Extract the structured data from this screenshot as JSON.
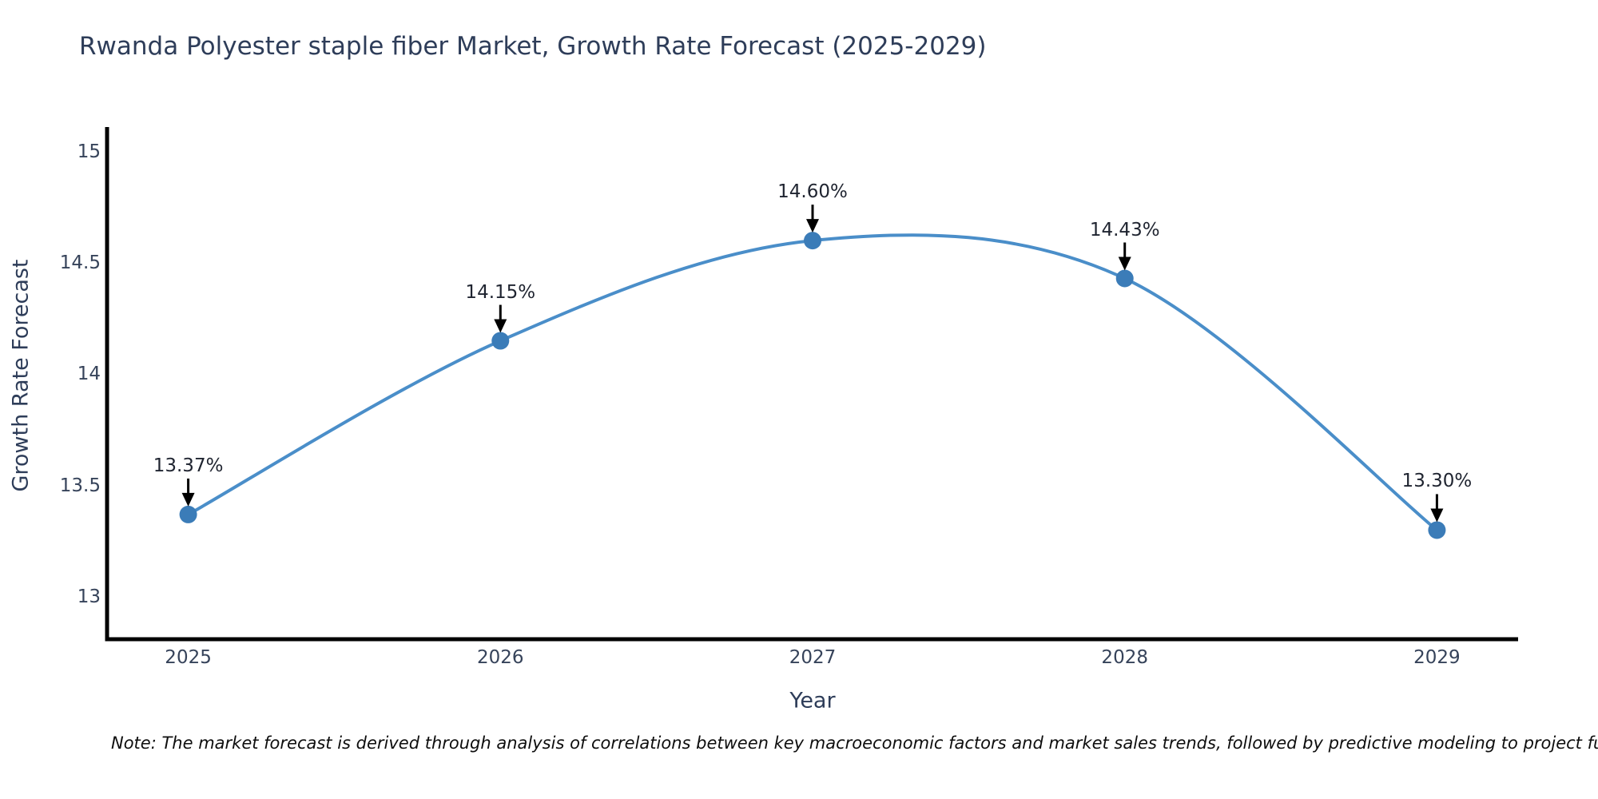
{
  "chart_data": {
    "type": "line",
    "title": "Rwanda Polyester staple fiber Market, Growth Rate Forecast (2025-2029)",
    "xlabel": "Year",
    "ylabel": "Growth Rate Forecast",
    "x": [
      2025,
      2026,
      2027,
      2028,
      2029
    ],
    "values": [
      13.37,
      14.15,
      14.6,
      14.43,
      13.3
    ],
    "point_labels": [
      "13.37%",
      "14.15%",
      "14.60%",
      "14.43%",
      "13.30%"
    ],
    "xtick_labels": [
      "2025",
      "2026",
      "2027",
      "2028",
      "2029"
    ],
    "yticks": [
      13,
      13.5,
      14,
      14.5,
      15
    ],
    "ytick_labels": [
      "13",
      "13.5",
      "14",
      "14.5",
      "15"
    ],
    "xlim": [
      2024.74,
      2029.26
    ],
    "ylim": [
      12.81,
      15.11
    ],
    "grid": false,
    "legend": null,
    "colors": {
      "line": "#4a8ec9",
      "marker": "#3b7cb8",
      "axis": "#000000",
      "title_text": "#2e3d59",
      "tick_text": "#36435a",
      "annotation_text": "#1f2430"
    },
    "note": "Note: The market forecast is derived through analysis of correlations between key macroeconomic factors and market sales trends, followed by predictive modeling to project future sal"
  }
}
